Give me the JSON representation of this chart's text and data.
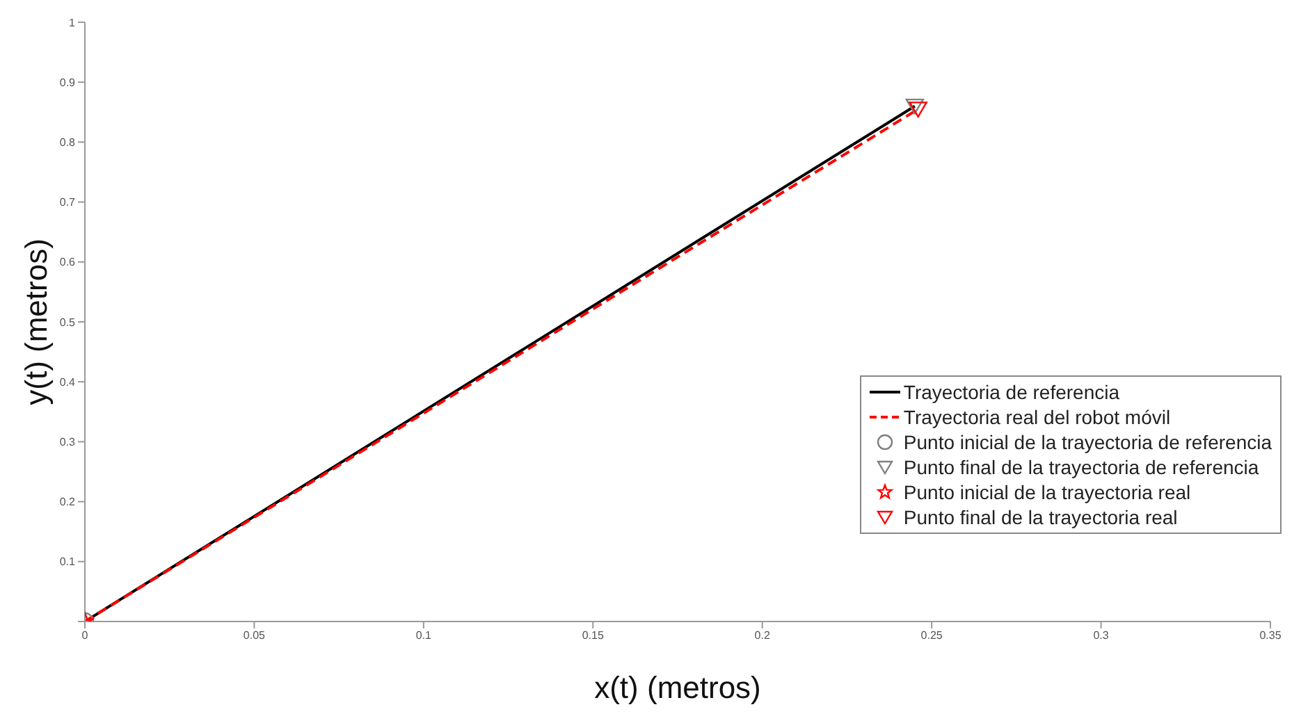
{
  "chart_data": {
    "type": "line",
    "xlabel": "x(t)  (metros)",
    "ylabel": "y(t) (metros)",
    "xlim": [
      0,
      0.35
    ],
    "xticks": [
      0,
      0.05,
      0.1,
      0.15,
      0.2,
      0.25,
      0.3,
      0.35
    ],
    "ylim": [
      0,
      1
    ],
    "yticks": [
      {
        "value": 0,
        "label": null
      },
      0.1,
      0.2,
      0.3,
      0.4,
      0.5,
      0.6,
      0.7,
      0.8,
      0.9,
      1
    ],
    "grid": false,
    "legend": "right",
    "series": [
      {
        "name": "Trayectoria de referencia",
        "color": "#000000",
        "line_style": "solid",
        "marker": "none",
        "x": [
          0,
          0.245
        ],
        "values": [
          0,
          0.86
        ]
      },
      {
        "name": "Trayectoria real del robot móvil",
        "color": "#ff0000",
        "line_style": "dashed",
        "marker": "none",
        "x": [
          0,
          0.246
        ],
        "values": [
          0,
          0.855
        ]
      },
      {
        "name": "Punto inicial de la trayectoria de referencia",
        "type": "scatter",
        "color": "#808080",
        "marker": "circle",
        "x": [
          0
        ],
        "values": [
          0
        ]
      },
      {
        "name": "Punto final de la trayectoria de referencia",
        "type": "scatter",
        "color": "#808080",
        "marker": "triangle",
        "x": [
          0.245
        ],
        "values": [
          0.86
        ]
      },
      {
        "name": "Punto inicial de la trayectoria real",
        "type": "scatter",
        "color": "#ff0000",
        "marker": "star",
        "x": [
          0
        ],
        "values": [
          0
        ]
      },
      {
        "name": "Punto final de la trayectoria real",
        "type": "scatter",
        "color": "#ff0000",
        "marker": "triangle",
        "x": [
          0.246
        ],
        "values": [
          0.855
        ]
      }
    ]
  }
}
